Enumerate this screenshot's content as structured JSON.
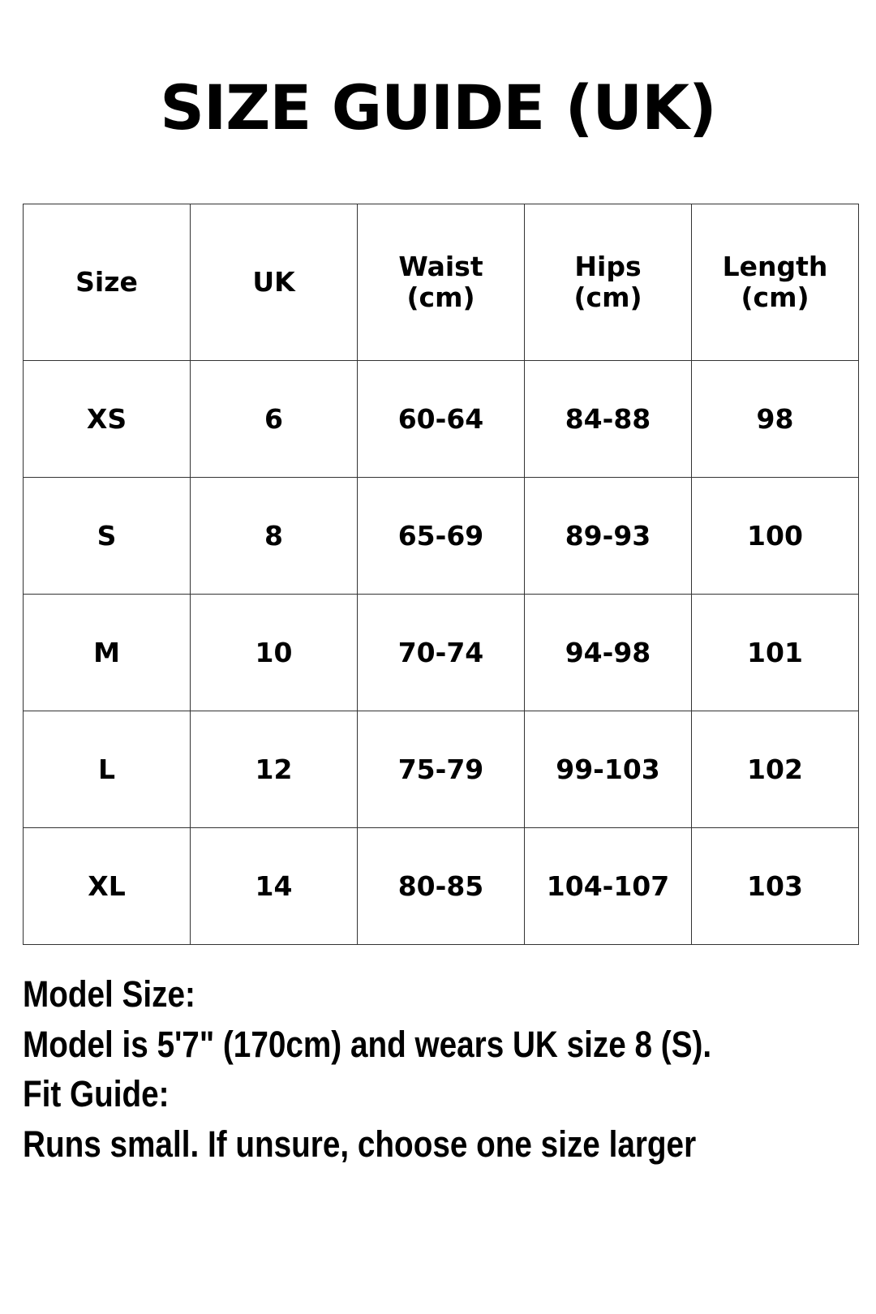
{
  "title": "SIZE GUIDE (UK)",
  "table": {
    "headers": [
      [
        "Size"
      ],
      [
        "UK"
      ],
      [
        "Waist",
        "(cm)"
      ],
      [
        "Hips",
        "(cm)"
      ],
      [
        "Length",
        "(cm)"
      ]
    ],
    "rows": [
      [
        "XS",
        "6",
        "60-64",
        "84-88",
        "98"
      ],
      [
        "S",
        "8",
        "65-69",
        "89-93",
        "100"
      ],
      [
        "M",
        "10",
        "70-74",
        "94-98",
        "101"
      ],
      [
        "L",
        "12",
        "75-79",
        "99-103",
        "102"
      ],
      [
        "XL",
        "14",
        "80-85",
        "104-107",
        "103"
      ]
    ]
  },
  "notes": {
    "model_heading": "Model Size:",
    "model_text": "Model is 5'7\" (170cm) and wears UK size 8 (S).",
    "fit_heading": "Fit Guide:",
    "fit_text": "Runs small. If unsure, choose one size larger"
  }
}
